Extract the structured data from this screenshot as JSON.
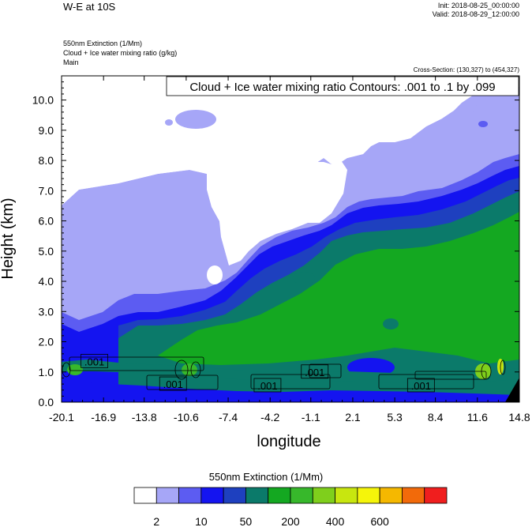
{
  "header": {
    "title": "W-E at 10S",
    "init": "Init: 2018-08-25_00:00:00",
    "valid": "Valid: 2018-08-29_12:00:00",
    "fields": [
      "550nm Extinction   (1/Mm)",
      "Cloud + Ice water mixing ratio   (g/kg)",
      "Main"
    ],
    "cross_section": "Cross-Section: (130,327) to (454,327)"
  },
  "chart_data": {
    "type": "heatmap",
    "contour_label": "Cloud + Ice water mixing ratio Contours: .001 to .1 by .099",
    "xlabel": "longitude",
    "ylabel": "Height (km)",
    "xlim": [
      -20.1,
      14.8
    ],
    "ylim": [
      0.0,
      10.8
    ],
    "x_ticks": [
      "-20.1",
      "-16.9",
      "-13.8",
      "-10.6",
      "-7.4",
      "-4.2",
      "-1.1",
      "2.1",
      "5.3",
      "8.4",
      "11.6",
      "14.8"
    ],
    "y_ticks": [
      "0.0",
      "1.0",
      "2.0",
      "3.0",
      "4.0",
      "5.0",
      "6.0",
      "7.0",
      "8.0",
      "9.0",
      "10.0"
    ],
    "contour_labels": [
      {
        "text": ".001",
        "x": -17.6,
        "y": 1.35
      },
      {
        "text": ".001",
        "x": -11.6,
        "y": 0.6
      },
      {
        "text": ".001",
        "x": -4.4,
        "y": 0.55
      },
      {
        "text": ".001",
        "x": -0.8,
        "y": 1.0
      },
      {
        "text": ".001",
        "x": 7.3,
        "y": 0.55
      }
    ],
    "colorbar": {
      "title": "550nm Extinction  (1/Mm)",
      "colors": [
        "#ffffff",
        "#a6a6f7",
        "#5c5cf2",
        "#1414f0",
        "#1e40bf",
        "#0b7a6a",
        "#14a821",
        "#37b82b",
        "#7fcf1c",
        "#c8e60f",
        "#f5f50a",
        "#f5b800",
        "#f26a0a",
        "#f01e1e"
      ],
      "tick_labels": [
        "2",
        "10",
        "50",
        "200",
        "400",
        "600"
      ]
    }
  }
}
